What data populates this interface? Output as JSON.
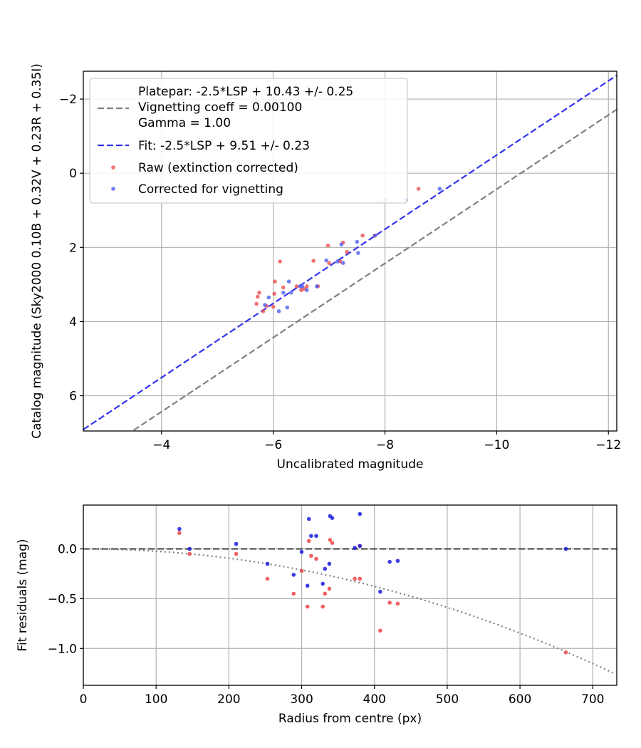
{
  "chart_data": [
    {
      "type": "scatter",
      "xlabel": "Uncalibrated magnitude",
      "ylabel": "Catalog magnitude (Sky2000 0.10B + 0.32V + 0.23R + 0.35I)",
      "xlim": [
        -2.6,
        -12.15
      ],
      "ylim": [
        6.95,
        -2.75
      ],
      "x_inverted": true,
      "y_inverted": true,
      "grid": true,
      "legend_position": "upper-left",
      "xticks": [
        -4,
        -6,
        -8,
        -10,
        -12
      ],
      "xtick_labels": [
        "−4",
        "−6",
        "−8",
        "−10",
        "−12"
      ],
      "yticks": [
        -2,
        0,
        2,
        4,
        6
      ],
      "ytick_labels": [
        "−2",
        "0",
        "2",
        "4",
        "6"
      ],
      "lines": [
        {
          "name": "Platepar: -2.5*LSP + 10.43 +/- 0.25\nVignetting coeff = 0.00100\nGamma = 1.00",
          "color": "#808080",
          "style": "dashed",
          "points": [
            [
              -3.5,
              6.93
            ],
            [
              -12.15,
              -1.72
            ]
          ]
        },
        {
          "name": "Fit: -2.5*LSP + 9.51 +/- 0.23",
          "color": "#3333ee",
          "style": "dashed",
          "points": [
            [
              -2.6,
              6.91
            ],
            [
              -12.15,
              -2.64
            ]
          ]
        }
      ],
      "series": [
        {
          "name": "Raw (extinction corrected)",
          "color": "#ee4444",
          "points": [
            [
              -5.7,
              3.52
            ],
            [
              -5.72,
              3.33
            ],
            [
              -5.75,
              3.22
            ],
            [
              -5.82,
              3.72
            ],
            [
              -5.88,
              3.58
            ],
            [
              -6.0,
              3.6
            ],
            [
              -6.02,
              3.25
            ],
            [
              -6.03,
              2.92
            ],
            [
              -6.12,
              2.38
            ],
            [
              -6.18,
              3.08
            ],
            [
              -6.42,
              3.05
            ],
            [
              -6.5,
              3.15
            ],
            [
              -6.55,
              3.12
            ],
            [
              -6.6,
              3.05
            ],
            [
              -6.72,
              2.36
            ],
            [
              -6.8,
              3.05
            ],
            [
              -6.98,
              1.95
            ],
            [
              -7.0,
              2.42
            ],
            [
              -7.2,
              2.38
            ],
            [
              -7.25,
              1.87
            ],
            [
              -7.32,
              2.12
            ],
            [
              -7.6,
              1.68
            ],
            [
              -7.82,
              1.68
            ],
            [
              -8.0,
              0.72
            ],
            [
              -8.6,
              0.42
            ]
          ]
        },
        {
          "name": "Corrected for vignetting",
          "color": "#4455ee",
          "points": [
            [
              -5.85,
              3.55
            ],
            [
              -5.92,
              3.35
            ],
            [
              -6.1,
              3.72
            ],
            [
              -6.18,
              3.22
            ],
            [
              -6.25,
              3.62
            ],
            [
              -6.28,
              2.92
            ],
            [
              -6.32,
              3.22
            ],
            [
              -6.48,
              3.05
            ],
            [
              -6.52,
              3.05
            ],
            [
              -6.6,
              3.15
            ],
            [
              -6.78,
              3.05
            ],
            [
              -6.95,
              2.35
            ],
            [
              -7.15,
              2.38
            ],
            [
              -7.22,
              1.92
            ],
            [
              -7.25,
              2.42
            ],
            [
              -7.5,
              1.85
            ],
            [
              -7.52,
              2.15
            ],
            [
              -7.82,
              1.68
            ],
            [
              -8.38,
              0.72
            ],
            [
              -8.98,
              0.42
            ]
          ]
        }
      ]
    },
    {
      "type": "scatter",
      "xlabel": "Radius from centre (px)",
      "ylabel": "Fit residuals (mag)",
      "xlim": [
        0,
        733
      ],
      "ylim": [
        -1.37,
        0.44
      ],
      "grid": true,
      "xticks": [
        0,
        100,
        200,
        300,
        400,
        500,
        600,
        700
      ],
      "xtick_labels": [
        "0",
        "100",
        "200",
        "300",
        "400",
        "500",
        "600",
        "700"
      ],
      "yticks": [
        0.0,
        -0.5,
        -1.0
      ],
      "ytick_labels": [
        "0.0",
        "−0.5",
        "−1.0"
      ],
      "reference_lines": [
        {
          "kind": "horizontal-dashed",
          "y": 0,
          "color": "#555555"
        },
        {
          "kind": "vignetting-curve-dotted",
          "color": "#808080",
          "a": -2.35e-06
        }
      ],
      "series": [
        {
          "name": "Raw (extinction corrected)",
          "color": "#ee4444",
          "points": [
            [
              132,
              0.16
            ],
            [
              146,
              -0.05
            ],
            [
              210,
              -0.05
            ],
            [
              253,
              -0.3
            ],
            [
              289,
              -0.45
            ],
            [
              300,
              -0.22
            ],
            [
              308,
              -0.58
            ],
            [
              310,
              0.08
            ],
            [
              313,
              -0.07
            ],
            [
              320,
              -0.1
            ],
            [
              329,
              -0.58
            ],
            [
              332,
              -0.45
            ],
            [
              338,
              -0.4
            ],
            [
              339,
              0.09
            ],
            [
              342,
              0.06
            ],
            [
              373,
              -0.3
            ],
            [
              380,
              -0.3
            ],
            [
              380,
              0.03
            ],
            [
              408,
              -0.82
            ],
            [
              421,
              -0.54
            ],
            [
              432,
              -0.55
            ],
            [
              663,
              -1.04
            ]
          ]
        },
        {
          "name": "Corrected for vignetting",
          "color": "#1a1add",
          "points": [
            [
              132,
              0.2
            ],
            [
              146,
              0.0
            ],
            [
              210,
              0.05
            ],
            [
              253,
              -0.15
            ],
            [
              289,
              -0.26
            ],
            [
              300,
              -0.03
            ],
            [
              308,
              -0.37
            ],
            [
              310,
              0.3
            ],
            [
              313,
              0.13
            ],
            [
              320,
              0.13
            ],
            [
              329,
              -0.35
            ],
            [
              332,
              -0.2
            ],
            [
              338,
              -0.15
            ],
            [
              339,
              0.33
            ],
            [
              342,
              0.31
            ],
            [
              373,
              0.01
            ],
            [
              380,
              0.35
            ],
            [
              380,
              0.03
            ],
            [
              408,
              -0.43
            ],
            [
              421,
              -0.13
            ],
            [
              432,
              -0.12
            ],
            [
              663,
              0.0
            ]
          ]
        }
      ]
    }
  ]
}
